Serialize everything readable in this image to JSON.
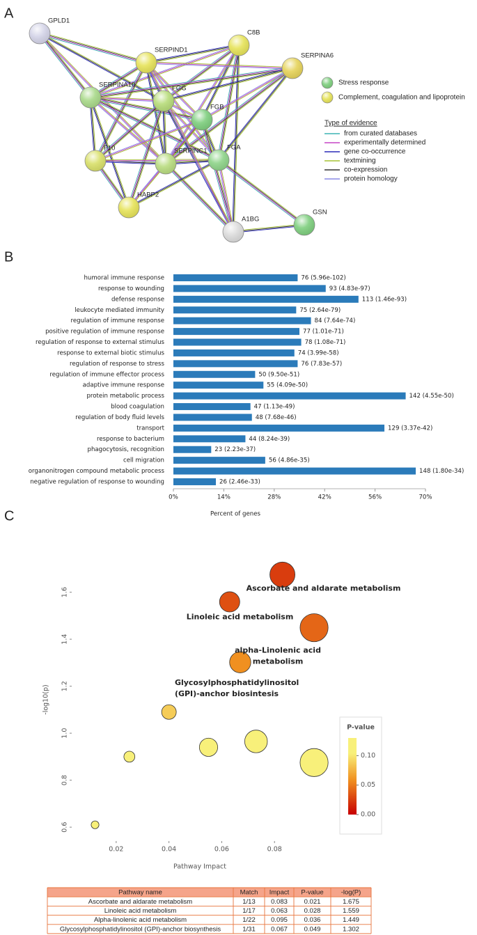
{
  "panels": [
    "A",
    "B",
    "C"
  ],
  "network": {
    "nodes": [
      {
        "label": "GPLD1",
        "color": "#d4d4e8"
      },
      {
        "label": "C8B",
        "color": "#e6e35a"
      },
      {
        "label": "SERPIND1",
        "color": "#e6e35a"
      },
      {
        "label": "SERPINA6",
        "color": "#e6d35a"
      },
      {
        "label": "SERPINA10",
        "color": "#a9d98a"
      },
      {
        "label": "FGG",
        "color": "#b7dc7a"
      },
      {
        "label": "FGB",
        "color": "#7fcf7f"
      },
      {
        "label": "F10",
        "color": "#d9e06a"
      },
      {
        "label": "SERPINC1",
        "color": "#b9dc80"
      },
      {
        "label": "FGA",
        "color": "#8fd48a"
      },
      {
        "label": "HABP2",
        "color": "#e6e35a"
      },
      {
        "label": "A1BG",
        "color": "#dcdcdc"
      },
      {
        "label": "GSN",
        "color": "#7fcf7f"
      }
    ],
    "legend": [
      {
        "label": "Stress response",
        "color": "#7fcf7f"
      },
      {
        "label": "Complement, coagulation and lipoprotein",
        "color": "#e6e35a"
      }
    ],
    "evidence": {
      "title": "Type of evidence",
      "items": [
        {
          "label": "from curated databases",
          "color": "#3cb4b4"
        },
        {
          "label": "experimentally determined",
          "color": "#c545c5"
        },
        {
          "label": "gene co-occurrence",
          "color": "#2a2ab8"
        },
        {
          "label": "textmining",
          "color": "#a6c234"
        },
        {
          "label": "co-expression",
          "color": "#333333"
        },
        {
          "label": "protein homology",
          "color": "#8a8ae6"
        }
      ]
    }
  },
  "chart_data": [
    {
      "type": "bar",
      "orientation": "horizontal",
      "color": "#2b7bba",
      "categories": [
        "humoral immune response",
        "response to wounding",
        "defense response",
        "leukocyte mediated immunity",
        "regulation of immune response",
        "positive regulation of immune response",
        "regulation of response to external stimulus",
        "response to external biotic stimulus",
        "regulation of response to stress",
        "regulation of immune effector process",
        "adaptive immune response",
        "protein metabolic process",
        "blood coagulation",
        "regulation of body fluid levels",
        "transport",
        "response to bacterium",
        "phagocytosis, recognition",
        "cell migration",
        "organonitrogen compound metabolic process",
        "negative regulation of response to wounding"
      ],
      "values": [
        34.5,
        42.3,
        51.4,
        34.1,
        38.2,
        35.0,
        35.5,
        33.6,
        34.5,
        22.7,
        25.0,
        64.5,
        21.4,
        21.8,
        58.6,
        20.0,
        10.5,
        25.5,
        67.3,
        11.8
      ],
      "bar_labels": [
        "76 (5.96e-102)",
        "93 (4.83e-97)",
        "113 (1.46e-93)",
        "75 (2.64e-79)",
        "84 (7.64e-74)",
        "77 (1.01e-71)",
        "78 (1.08e-71)",
        "74 (3.99e-58)",
        "76 (7.83e-57)",
        "50 (9.50e-51)",
        "55 (4.09e-50)",
        "142 (4.55e-50)",
        "47 (1.13e-49)",
        "48 (7.68e-46)",
        "129 (3.37e-42)",
        "44 (8.24e-39)",
        "23 (2.23e-37)",
        "56 (4.86e-35)",
        "148 (1.80e-34)",
        "26 (2.46e-33)"
      ],
      "xlim": [
        0,
        70
      ],
      "xticks": [
        {
          "value": 0,
          "label": "0%"
        },
        {
          "value": 14,
          "label": "14%"
        },
        {
          "value": 28,
          "label": "28%"
        },
        {
          "value": 42,
          "label": "42%"
        },
        {
          "value": 56,
          "label": "56%"
        },
        {
          "value": 70,
          "label": "70%"
        }
      ],
      "xlabel": "Percent of genes"
    },
    {
      "type": "scatter",
      "x": [
        0.083,
        0.063,
        0.095,
        0.067,
        0.04,
        0.025,
        0.055,
        0.073,
        0.095,
        0.012
      ],
      "values": [
        1.675,
        1.559,
        1.449,
        1.302,
        1.09,
        0.9,
        0.94,
        0.965,
        0.875,
        0.61
      ],
      "xlim": [
        0.005,
        0.1
      ],
      "ylim": [
        0.55,
        1.75
      ],
      "xticks": [
        0.02,
        0.04,
        0.06,
        0.08
      ],
      "yticks": [
        0.6,
        0.8,
        {
          "value": 1,
          "label": "1.0"
        },
        1.2,
        1.4,
        1.6
      ],
      "xlabel": "Pathway Impact",
      "ylabel": "-log10(p)",
      "annotations": [
        [
          "Ascorbate and aldarate metabolism"
        ],
        [
          "Linoleic acid metabolism"
        ],
        [
          "alpha-Linolenic acid",
          "metabolism"
        ],
        [
          "Glycosylphosphatidylinositol",
          "(GPI)-anchor biosintesis"
        ]
      ],
      "colorbar": {
        "title": "P-value",
        "lim": [
          0,
          0.13
        ],
        "colors": [
          "#c80000",
          "#f09020",
          "#f8f07a"
        ],
        "ticks": [
          {
            "value": 0,
            "label": "0.00"
          },
          {
            "value": 0.05,
            "label": "0.05"
          },
          {
            "value": 0.1,
            "label": "0.10"
          }
        ]
      }
    }
  ],
  "table": {
    "header": [
      "Pathway name",
      "Match",
      "Impact",
      "P-value",
      "-log(P)"
    ],
    "rows": [
      [
        "Ascorbate and aldarate metabolism",
        "1/13",
        0.083,
        0.021,
        1.675
      ],
      [
        "Linoleic acid metabolism",
        "1/17",
        0.063,
        0.028,
        1.559
      ],
      [
        "Alpha-linolenic acid metabolism",
        "1/22",
        0.095,
        0.036,
        1.449
      ],
      [
        "Glycosylphosphatidylinositol (GPI)-anchor biosynthesis",
        "1/31",
        0.067,
        0.049,
        1.302
      ]
    ]
  }
}
